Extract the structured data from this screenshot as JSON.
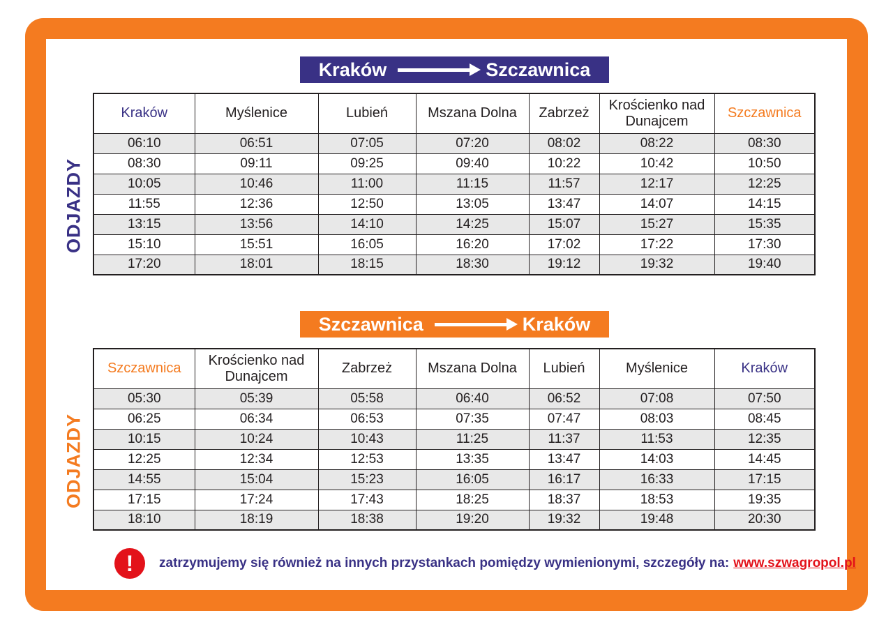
{
  "colors": {
    "purple": "#393185",
    "orange": "#f47b20",
    "red": "#e3121a",
    "row_stripe": "#e8e8e8"
  },
  "section1": {
    "banner": {
      "from": "Kraków",
      "to": "Szczawnica"
    },
    "side_label": "ODJAZDY",
    "table": {
      "headers": [
        "Kraków",
        "Myślenice",
        "Lubień",
        "Mszana Dolna",
        "Zabrzeż",
        "Krościenko nad Dunajcem",
        "Szczawnica"
      ],
      "rows": [
        [
          "06:10",
          "06:51",
          "07:05",
          "07:20",
          "08:02",
          "08:22",
          "08:30"
        ],
        [
          "08:30",
          "09:11",
          "09:25",
          "09:40",
          "10:22",
          "10:42",
          "10:50"
        ],
        [
          "10:05",
          "10:46",
          "11:00",
          "11:15",
          "11:57",
          "12:17",
          "12:25"
        ],
        [
          "11:55",
          "12:36",
          "12:50",
          "13:05",
          "13:47",
          "14:07",
          "14:15"
        ],
        [
          "13:15",
          "13:56",
          "14:10",
          "14:25",
          "15:07",
          "15:27",
          "15:35"
        ],
        [
          "15:10",
          "15:51",
          "16:05",
          "16:20",
          "17:02",
          "17:22",
          "17:30"
        ],
        [
          "17:20",
          "18:01",
          "18:15",
          "18:30",
          "19:12",
          "19:32",
          "19:40"
        ]
      ]
    }
  },
  "section2": {
    "banner": {
      "from": "Szczawnica",
      "to": "Kraków"
    },
    "side_label": "ODJAZDY",
    "table": {
      "headers": [
        "Szczawnica",
        "Krościenko nad Dunajcem",
        "Zabrzeż",
        "Mszana Dolna",
        "Lubień",
        "Myślenice",
        "Kraków"
      ],
      "rows": [
        [
          "05:30",
          "05:39",
          "05:58",
          "06:40",
          "06:52",
          "07:08",
          "07:50"
        ],
        [
          "06:25",
          "06:34",
          "06:53",
          "07:35",
          "07:47",
          "08:03",
          "08:45"
        ],
        [
          "10:15",
          "10:24",
          "10:43",
          "11:25",
          "11:37",
          "11:53",
          "12:35"
        ],
        [
          "12:25",
          "12:34",
          "12:53",
          "13:35",
          "13:47",
          "14:03",
          "14:45"
        ],
        [
          "14:55",
          "15:04",
          "15:23",
          "16:05",
          "16:17",
          "16:33",
          "17:15"
        ],
        [
          "17:15",
          "17:24",
          "17:43",
          "18:25",
          "18:37",
          "18:53",
          "19:35"
        ],
        [
          "18:10",
          "18:19",
          "18:38",
          "19:20",
          "19:32",
          "19:48",
          "20:30"
        ]
      ]
    }
  },
  "footer": {
    "icon_glyph": "!",
    "text": "zatrzymujemy się również na innych przystankach pomiędzy wymienionymi, szczegóły na:",
    "link": "www.szwagropol.pl"
  }
}
